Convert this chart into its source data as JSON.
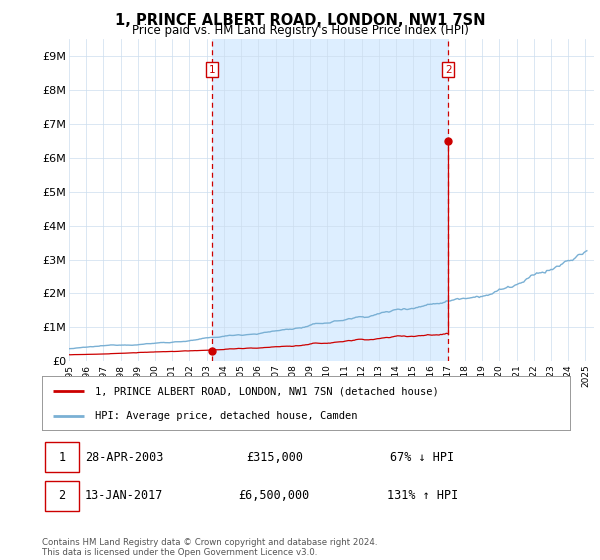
{
  "title": "1, PRINCE ALBERT ROAD, LONDON, NW1 7SN",
  "subtitle": "Price paid vs. HM Land Registry's House Price Index (HPI)",
  "ylabel_ticks": [
    "£0",
    "£1M",
    "£2M",
    "£3M",
    "£4M",
    "£5M",
    "£6M",
    "£7M",
    "£8M",
    "£9M"
  ],
  "ytick_vals": [
    0,
    1000000,
    2000000,
    3000000,
    4000000,
    5000000,
    6000000,
    7000000,
    8000000,
    9000000
  ],
  "ylim_max": 9500000,
  "xlim_start": 1995.0,
  "xlim_end": 2025.5,
  "transaction1_year": 2003.32,
  "transaction1_price": 315000,
  "transaction1_label": "1",
  "transaction2_year": 2017.04,
  "transaction2_price": 6500000,
  "transaction2_label": "2",
  "red_line_color": "#cc0000",
  "blue_line_color": "#7ab0d4",
  "shade_color": "#ddeeff",
  "dashed_line_color": "#cc0000",
  "legend_line1": "1, PRINCE ALBERT ROAD, LONDON, NW1 7SN (detached house)",
  "legend_line2": "HPI: Average price, detached house, Camden",
  "note1_label": "1",
  "note1_date": "28-APR-2003",
  "note1_price": "£315,000",
  "note1_hpi": "67% ↓ HPI",
  "note2_label": "2",
  "note2_date": "13-JAN-2017",
  "note2_price": "£6,500,000",
  "note2_hpi": "131% ↑ HPI",
  "footer": "Contains HM Land Registry data © Crown copyright and database right 2024.\nThis data is licensed under the Open Government Licence v3.0.",
  "background_color": "#ffffff",
  "grid_color": "#ccddee"
}
